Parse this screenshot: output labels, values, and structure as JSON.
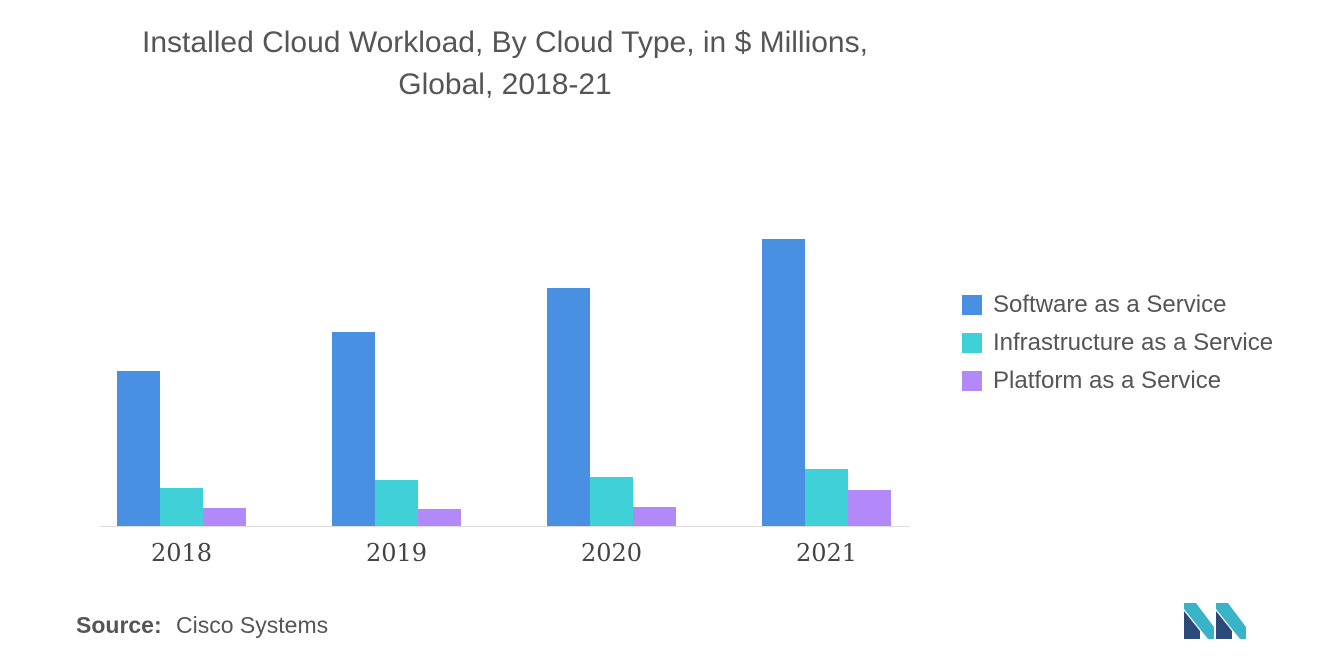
{
  "chart_data": {
    "type": "bar",
    "title_line1": "Installed Cloud Workload, By Cloud Type, in $ Millions,",
    "title_line2": "Global, 2018-21",
    "categories": [
      "2018",
      "2019",
      "2020",
      "2021"
    ],
    "series": [
      {
        "name": "Software as a Service",
        "color": "#4a90e2",
        "values": [
          155,
          194,
          238,
          287
        ]
      },
      {
        "name": "Infrastructure as a Service",
        "color": "#40d0d8",
        "values": [
          38,
          46,
          49,
          57
        ]
      },
      {
        "name": "Platform as a Service",
        "color": "#b388f8",
        "values": [
          18,
          17,
          19,
          36
        ]
      }
    ],
    "ylim": [
      0,
      300
    ],
    "grid": false,
    "legend_position": "right"
  },
  "source": {
    "label": "Source:",
    "text": "Cisco Systems"
  }
}
